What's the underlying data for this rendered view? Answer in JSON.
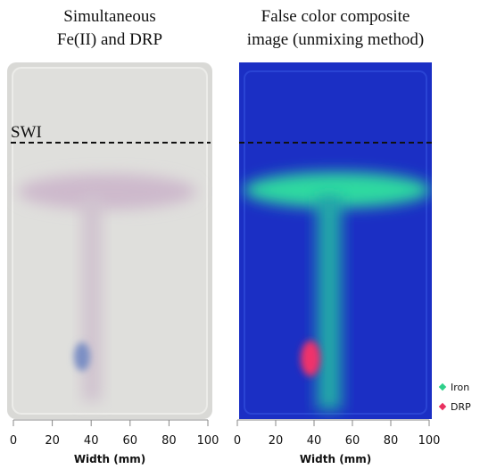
{
  "panels": [
    {
      "title": [
        "Simultaneous",
        "Fe(II) and DRP"
      ],
      "annotation": "SWI",
      "xlabel": "Width (mm)",
      "xlim": [
        0,
        100
      ],
      "xticks": [
        0,
        20,
        40,
        60,
        80,
        100
      ]
    },
    {
      "title": [
        "False color composite",
        "image (unmixing method)"
      ],
      "xlabel": "Width (mm)",
      "xlim": [
        0,
        100
      ],
      "xticks": [
        0,
        20,
        40,
        60,
        80,
        100
      ]
    }
  ],
  "legend": [
    {
      "name": "Iron",
      "color": "#2ecf8a"
    },
    {
      "name": "DRP",
      "color": "#e8305f"
    }
  ]
}
